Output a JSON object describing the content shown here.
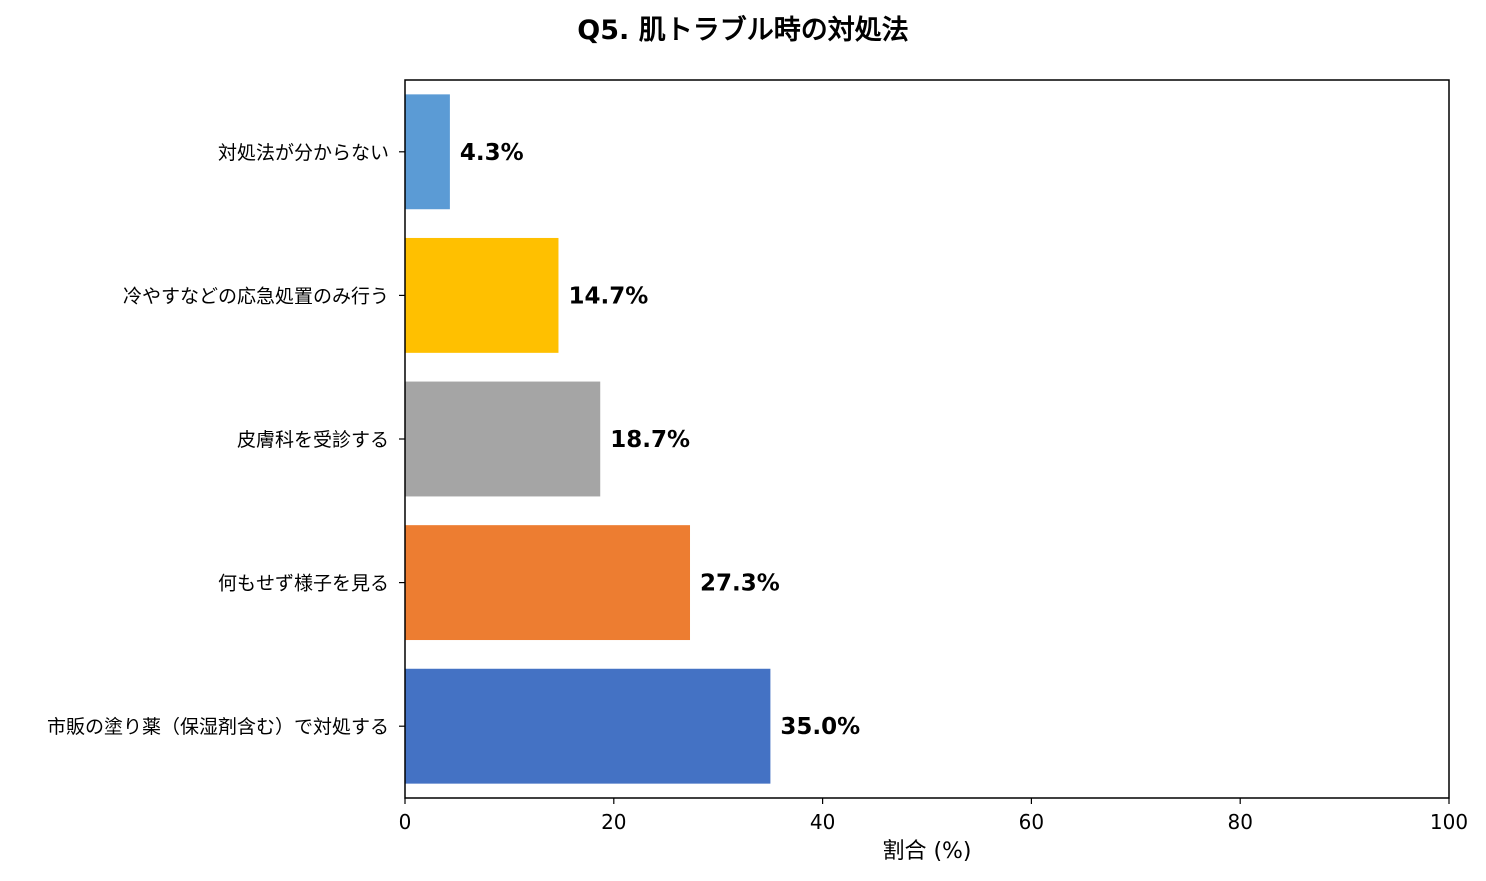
{
  "chart_data": {
    "type": "bar",
    "orientation": "horizontal",
    "title": "Q5. 肌トラブル時の対処法",
    "xlabel": "割合 (%)",
    "ylabel": "",
    "xlim": [
      0,
      100
    ],
    "x_ticks": [
      0,
      20,
      40,
      60,
      80,
      100
    ],
    "grid": false,
    "categories": [
      "対処法が分からない",
      "冷やすなどの応急処置のみ行う",
      "皮膚科を受診する",
      "何もせず様子を見る",
      "市販の塗り薬（保湿剤含む）で対処する"
    ],
    "values": [
      4.3,
      14.7,
      18.7,
      27.3,
      35.0
    ],
    "value_labels": [
      "4.3%",
      "14.7%",
      "18.7%",
      "27.3%",
      "35.0%"
    ],
    "colors": [
      "#5b9bd5",
      "#ffc000",
      "#a5a5a5",
      "#ed7d31",
      "#4472c4"
    ]
  }
}
